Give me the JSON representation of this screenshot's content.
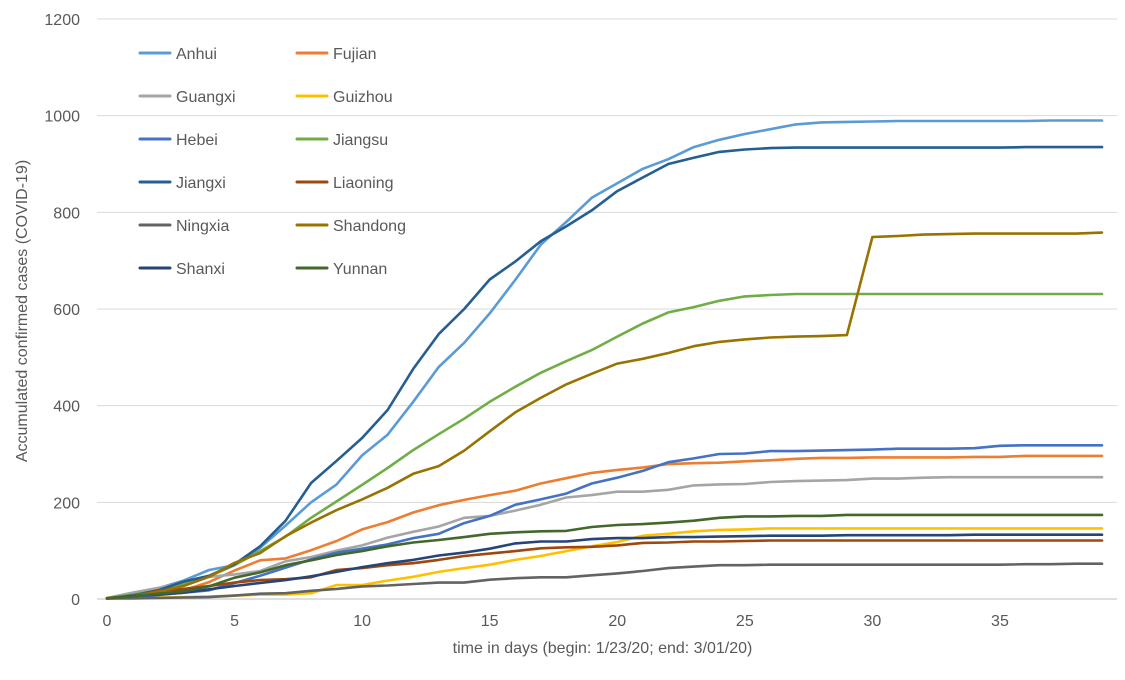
{
  "chart_data": {
    "type": "line",
    "title": "",
    "xlabel": "time in days (begin: 1/23/20; end: 3/01/20)",
    "ylabel": "Accumulated confirmed cases (COVID-19)",
    "xlim": [
      0,
      39
    ],
    "ylim": [
      0,
      1200
    ],
    "x_ticks": [
      0,
      5,
      10,
      15,
      20,
      25,
      30,
      35
    ],
    "y_ticks": [
      0,
      200,
      400,
      600,
      800,
      1000,
      1200
    ],
    "grid": "horizontal",
    "legend_position": "top-left",
    "x": [
      0,
      1,
      2,
      3,
      4,
      5,
      6,
      7,
      8,
      9,
      10,
      11,
      12,
      13,
      14,
      15,
      16,
      17,
      18,
      19,
      20,
      21,
      22,
      23,
      24,
      25,
      26,
      27,
      28,
      29,
      30,
      31,
      32,
      33,
      34,
      35,
      36,
      37,
      38,
      39
    ],
    "series": [
      {
        "name": "Anhui",
        "color": "#5b9bd5",
        "values": [
          1,
          9,
          22,
          38,
          60,
          70,
          106,
          152,
          200,
          237,
          297,
          340,
          408,
          480,
          530,
          591,
          660,
          733,
          780,
          830,
          860,
          890,
          910,
          935,
          950,
          962,
          972,
          982,
          986,
          987,
          988,
          989,
          989,
          989,
          989,
          989,
          989,
          990,
          990,
          990
        ]
      },
      {
        "name": "Fujian",
        "color": "#ed7d31",
        "values": [
          1,
          5,
          10,
          18,
          35,
          59,
          80,
          84,
          101,
          120,
          144,
          159,
          179,
          194,
          205,
          215,
          224,
          239,
          250,
          261,
          267,
          272,
          279,
          281,
          282,
          285,
          287,
          290,
          292,
          292,
          293,
          293,
          293,
          293,
          294,
          294,
          296,
          296,
          296,
          296
        ]
      },
      {
        "name": "Guangxi",
        "color": "#a5a5a5",
        "values": [
          2,
          13,
          23,
          33,
          46,
          51,
          58,
          78,
          87,
          100,
          111,
          127,
          139,
          150,
          168,
          172,
          183,
          195,
          210,
          215,
          222,
          222,
          226,
          235,
          237,
          238,
          242,
          244,
          245,
          246,
          249,
          249,
          251,
          252,
          252,
          252,
          252,
          252,
          252,
          252
        ]
      },
      {
        "name": "Guizhou",
        "color": "#ffc000",
        "values": [
          1,
          3,
          3,
          4,
          5,
          7,
          9,
          9,
          12,
          29,
          29,
          38,
          46,
          56,
          64,
          71,
          81,
          89,
          99,
          109,
          118,
          131,
          135,
          140,
          143,
          144,
          146,
          146,
          146,
          146,
          146,
          146,
          146,
          146,
          146,
          146,
          146,
          146,
          146,
          146
        ]
      },
      {
        "name": "Hebei",
        "color": "#4472c4",
        "values": [
          1,
          2,
          8,
          13,
          18,
          33,
          48,
          65,
          82,
          96,
          104,
          113,
          126,
          135,
          157,
          172,
          195,
          206,
          218,
          239,
          251,
          265,
          283,
          291,
          300,
          301,
          306,
          306,
          307,
          308,
          309,
          311,
          311,
          311,
          312,
          317,
          318,
          318,
          318,
          318
        ]
      },
      {
        "name": "Jiangsu",
        "color": "#70ad47",
        "values": [
          1,
          9,
          18,
          31,
          47,
          70,
          99,
          129,
          168,
          202,
          236,
          271,
          308,
          341,
          373,
          408,
          439,
          468,
          492,
          515,
          543,
          570,
          593,
          604,
          617,
          626,
          629,
          631,
          631,
          631,
          631,
          631,
          631,
          631,
          631,
          631,
          631,
          631,
          631,
          631
        ]
      },
      {
        "name": "Jiangxi",
        "color": "#255e91",
        "values": [
          2,
          7,
          18,
          36,
          48,
          72,
          109,
          162,
          240,
          286,
          333,
          391,
          476,
          548,
          600,
          661,
          698,
          740,
          771,
          804,
          844,
          872,
          900,
          913,
          925,
          930,
          933,
          934,
          934,
          934,
          934,
          934,
          934,
          934,
          934,
          934,
          935,
          935,
          935,
          935
        ]
      },
      {
        "name": "Liaoning",
        "color": "#9e480e",
        "values": [
          2,
          4,
          17,
          21,
          27,
          34,
          39,
          41,
          45,
          60,
          64,
          70,
          74,
          81,
          89,
          94,
          99,
          105,
          107,
          108,
          111,
          116,
          117,
          119,
          119,
          120,
          121,
          121,
          121,
          121,
          121,
          121,
          121,
          121,
          121,
          121,
          121,
          121,
          121,
          121
        ]
      },
      {
        "name": "Ningxia",
        "color": "#636363",
        "values": [
          1,
          1,
          2,
          3,
          4,
          7,
          11,
          12,
          17,
          21,
          26,
          28,
          31,
          34,
          34,
          40,
          43,
          45,
          45,
          49,
          53,
          58,
          64,
          67,
          70,
          70,
          71,
          71,
          71,
          71,
          71,
          71,
          71,
          71,
          71,
          71,
          72,
          72,
          73,
          73
        ]
      },
      {
        "name": "Shandong",
        "color": "#997300",
        "values": [
          2,
          6,
          15,
          27,
          46,
          75,
          95,
          130,
          158,
          184,
          206,
          230,
          259,
          275,
          307,
          347,
          386,
          416,
          444,
          466,
          487,
          497,
          509,
          523,
          532,
          537,
          541,
          543,
          544,
          546,
          749,
          751,
          754,
          755,
          756,
          756,
          756,
          756,
          756,
          758
        ]
      },
      {
        "name": "Shanxi",
        "color": "#264478",
        "values": [
          1,
          6,
          9,
          13,
          20,
          27,
          33,
          39,
          47,
          56,
          66,
          74,
          81,
          90,
          96,
          104,
          115,
          119,
          119,
          124,
          126,
          126,
          128,
          128,
          129,
          130,
          131,
          131,
          131,
          132,
          132,
          132,
          132,
          132,
          133,
          133,
          133,
          133,
          133,
          133
        ]
      },
      {
        "name": "Yunnan",
        "color": "#43682b",
        "values": [
          1,
          5,
          11,
          16,
          26,
          44,
          55,
          70,
          80,
          91,
          99,
          109,
          117,
          122,
          128,
          135,
          138,
          140,
          141,
          149,
          153,
          155,
          158,
          162,
          168,
          171,
          171,
          172,
          172,
          174,
          174,
          174,
          174,
          174,
          174,
          174,
          174,
          174,
          174,
          174
        ]
      }
    ]
  }
}
